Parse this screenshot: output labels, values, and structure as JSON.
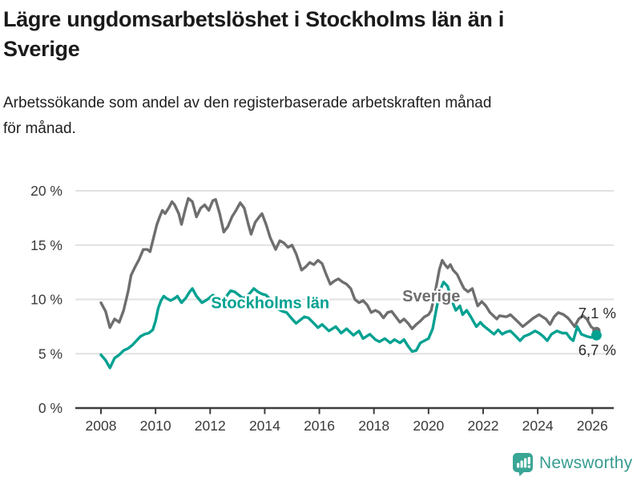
{
  "header": {
    "title": "Lägre ungdomsarbetslöshet i Stockholms län än i\nSverige",
    "subtitle": "Arbetssökande som andel av den registerbaserade arbetskraften månad\nför månad."
  },
  "footer": {
    "brand": "Newsworthy",
    "logo_icon": "newsworthy-speech-bubble-chart-icon"
  },
  "colors": {
    "stockholm_teal": "#00a191",
    "sverige_gray": "#6e6e6e",
    "grid": "#e1e1e1",
    "axis": "#3d3d3d",
    "tick_label": "#3a3a3a",
    "end_label": "#2b2b2b",
    "brand_teal": "#369c90",
    "logo_fill": "#3aa695"
  },
  "chart_data": {
    "type": "line",
    "title": "Lägre ungdomsarbetslöshet i Stockholms län än i Sverige",
    "subtitle": "Arbetssökande som andel av den registerbaserade arbetskraften månad för månad.",
    "unit": "%",
    "grid": true,
    "legend": "inline-labels",
    "xlim": [
      2007.1,
      2026.8
    ],
    "ylim": [
      0,
      20
    ],
    "x_ticks": [
      2008,
      2010,
      2012,
      2014,
      2016,
      2018,
      2020,
      2022,
      2024,
      2026
    ],
    "x_tick_labels": [
      "2008",
      "2010",
      "2012",
      "2014",
      "2016",
      "2018",
      "2020",
      "2022",
      "2024",
      "2026"
    ],
    "y_ticks": [
      0,
      5,
      10,
      15,
      20
    ],
    "y_tick_labels": [
      "0 %",
      "5 %",
      "10 %",
      "15 %",
      "20 %"
    ],
    "series": [
      {
        "name": "Sverige",
        "slug": "sverige",
        "color": "#6e6e6e",
        "end_label": "7,1 %",
        "end_value": 7.1,
        "label": {
          "year": 2020.1,
          "value": 9.8
        },
        "points": [
          [
            2008.0,
            9.7
          ],
          [
            2008.17,
            8.9
          ],
          [
            2008.33,
            7.4
          ],
          [
            2008.5,
            8.2
          ],
          [
            2008.67,
            7.9
          ],
          [
            2008.83,
            9.0
          ],
          [
            2009.0,
            10.8
          ],
          [
            2009.1,
            12.2
          ],
          [
            2009.25,
            13.0
          ],
          [
            2009.4,
            13.7
          ],
          [
            2009.55,
            14.6
          ],
          [
            2009.7,
            14.6
          ],
          [
            2009.8,
            14.4
          ],
          [
            2009.9,
            15.4
          ],
          [
            2010.05,
            16.9
          ],
          [
            2010.15,
            17.6
          ],
          [
            2010.25,
            18.2
          ],
          [
            2010.35,
            17.9
          ],
          [
            2010.5,
            18.5
          ],
          [
            2010.6,
            19.0
          ],
          [
            2010.7,
            18.7
          ],
          [
            2010.85,
            17.9
          ],
          [
            2010.95,
            16.9
          ],
          [
            2011.1,
            18.4
          ],
          [
            2011.2,
            19.3
          ],
          [
            2011.35,
            19.0
          ],
          [
            2011.5,
            17.6
          ],
          [
            2011.65,
            18.4
          ],
          [
            2011.8,
            18.7
          ],
          [
            2011.95,
            18.2
          ],
          [
            2012.1,
            19.1
          ],
          [
            2012.2,
            19.2
          ],
          [
            2012.35,
            17.9
          ],
          [
            2012.5,
            16.2
          ],
          [
            2012.65,
            16.7
          ],
          [
            2012.8,
            17.6
          ],
          [
            2012.95,
            18.2
          ],
          [
            2013.1,
            18.9
          ],
          [
            2013.25,
            18.4
          ],
          [
            2013.4,
            16.9
          ],
          [
            2013.5,
            16.0
          ],
          [
            2013.65,
            17.1
          ],
          [
            2013.8,
            17.6
          ],
          [
            2013.9,
            17.9
          ],
          [
            2014.05,
            16.9
          ],
          [
            2014.2,
            15.7
          ],
          [
            2014.4,
            14.6
          ],
          [
            2014.55,
            15.4
          ],
          [
            2014.7,
            15.2
          ],
          [
            2014.85,
            14.8
          ],
          [
            2015.0,
            15.0
          ],
          [
            2015.15,
            14.2
          ],
          [
            2015.35,
            12.7
          ],
          [
            2015.5,
            13.0
          ],
          [
            2015.65,
            13.4
          ],
          [
            2015.8,
            13.2
          ],
          [
            2015.95,
            13.6
          ],
          [
            2016.1,
            13.3
          ],
          [
            2016.25,
            12.3
          ],
          [
            2016.4,
            11.4
          ],
          [
            2016.55,
            11.7
          ],
          [
            2016.7,
            11.9
          ],
          [
            2016.85,
            11.6
          ],
          [
            2017.0,
            11.4
          ],
          [
            2017.15,
            11.0
          ],
          [
            2017.3,
            10.0
          ],
          [
            2017.45,
            9.7
          ],
          [
            2017.6,
            9.9
          ],
          [
            2017.75,
            9.5
          ],
          [
            2017.9,
            8.8
          ],
          [
            2018.05,
            9.0
          ],
          [
            2018.2,
            8.8
          ],
          [
            2018.35,
            8.3
          ],
          [
            2018.5,
            8.8
          ],
          [
            2018.65,
            8.9
          ],
          [
            2018.8,
            8.4
          ],
          [
            2018.95,
            7.9
          ],
          [
            2019.1,
            8.2
          ],
          [
            2019.25,
            7.8
          ],
          [
            2019.4,
            7.3
          ],
          [
            2019.55,
            7.7
          ],
          [
            2019.7,
            8.0
          ],
          [
            2019.85,
            8.4
          ],
          [
            2020.0,
            8.6
          ],
          [
            2020.1,
            9.0
          ],
          [
            2020.25,
            10.8
          ],
          [
            2020.4,
            12.8
          ],
          [
            2020.5,
            13.6
          ],
          [
            2020.6,
            13.2
          ],
          [
            2020.7,
            12.9
          ],
          [
            2020.8,
            13.2
          ],
          [
            2020.9,
            12.7
          ],
          [
            2021.05,
            12.3
          ],
          [
            2021.2,
            11.5
          ],
          [
            2021.3,
            11.0
          ],
          [
            2021.45,
            10.7
          ],
          [
            2021.6,
            11.0
          ],
          [
            2021.8,
            9.4
          ],
          [
            2021.95,
            9.8
          ],
          [
            2022.1,
            9.4
          ],
          [
            2022.25,
            8.8
          ],
          [
            2022.5,
            8.2
          ],
          [
            2022.6,
            8.5
          ],
          [
            2022.85,
            8.4
          ],
          [
            2023.0,
            8.6
          ],
          [
            2023.25,
            8.0
          ],
          [
            2023.45,
            7.5
          ],
          [
            2023.65,
            7.9
          ],
          [
            2023.85,
            8.3
          ],
          [
            2024.05,
            8.6
          ],
          [
            2024.3,
            8.2
          ],
          [
            2024.45,
            7.7
          ],
          [
            2024.6,
            8.4
          ],
          [
            2024.75,
            8.8
          ],
          [
            2024.95,
            8.6
          ],
          [
            2025.1,
            8.3
          ],
          [
            2025.2,
            8.0
          ],
          [
            2025.35,
            7.5
          ],
          [
            2025.5,
            8.2
          ],
          [
            2025.65,
            8.5
          ],
          [
            2025.8,
            8.2
          ],
          [
            2025.95,
            7.5
          ],
          [
            2026.05,
            7.3
          ],
          [
            2026.15,
            7.1
          ]
        ]
      },
      {
        "name": "Stockholms län",
        "slug": "stockholms-lan",
        "color": "#00a191",
        "end_label": "6,7 %",
        "end_value": 6.7,
        "label": {
          "year": 2014.2,
          "value": 9.2
        },
        "points": [
          [
            2008.0,
            4.9
          ],
          [
            2008.17,
            4.4
          ],
          [
            2008.33,
            3.7
          ],
          [
            2008.5,
            4.6
          ],
          [
            2008.67,
            4.9
          ],
          [
            2008.83,
            5.3
          ],
          [
            2009.0,
            5.5
          ],
          [
            2009.15,
            5.8
          ],
          [
            2009.3,
            6.2
          ],
          [
            2009.45,
            6.6
          ],
          [
            2009.6,
            6.8
          ],
          [
            2009.75,
            6.9
          ],
          [
            2009.9,
            7.2
          ],
          [
            2010.0,
            8.0
          ],
          [
            2010.1,
            9.2
          ],
          [
            2010.2,
            9.9
          ],
          [
            2010.3,
            10.3
          ],
          [
            2010.4,
            10.1
          ],
          [
            2010.55,
            9.9
          ],
          [
            2010.7,
            10.1
          ],
          [
            2010.8,
            10.3
          ],
          [
            2010.95,
            9.7
          ],
          [
            2011.1,
            10.1
          ],
          [
            2011.25,
            10.7
          ],
          [
            2011.35,
            11.0
          ],
          [
            2011.5,
            10.3
          ],
          [
            2011.7,
            9.7
          ],
          [
            2011.9,
            10.0
          ],
          [
            2012.1,
            10.4
          ],
          [
            2012.3,
            9.9
          ],
          [
            2012.45,
            9.5
          ],
          [
            2012.6,
            10.3
          ],
          [
            2012.75,
            10.8
          ],
          [
            2012.9,
            10.7
          ],
          [
            2013.05,
            10.4
          ],
          [
            2013.2,
            10.1
          ],
          [
            2013.35,
            10.3
          ],
          [
            2013.5,
            10.7
          ],
          [
            2013.6,
            11.0
          ],
          [
            2013.75,
            10.7
          ],
          [
            2013.9,
            10.5
          ],
          [
            2014.05,
            10.4
          ],
          [
            2014.2,
            10.0
          ],
          [
            2014.35,
            9.4
          ],
          [
            2014.5,
            9.1
          ],
          [
            2014.65,
            8.9
          ],
          [
            2014.8,
            8.8
          ],
          [
            2015.0,
            8.2
          ],
          [
            2015.15,
            7.8
          ],
          [
            2015.3,
            8.1
          ],
          [
            2015.45,
            8.4
          ],
          [
            2015.6,
            8.3
          ],
          [
            2015.8,
            7.8
          ],
          [
            2015.95,
            7.4
          ],
          [
            2016.1,
            7.7
          ],
          [
            2016.35,
            7.1
          ],
          [
            2016.6,
            7.5
          ],
          [
            2016.8,
            6.9
          ],
          [
            2017.0,
            7.3
          ],
          [
            2017.25,
            6.7
          ],
          [
            2017.45,
            7.1
          ],
          [
            2017.6,
            6.4
          ],
          [
            2017.85,
            6.8
          ],
          [
            2018.05,
            6.3
          ],
          [
            2018.2,
            6.1
          ],
          [
            2018.4,
            6.4
          ],
          [
            2018.6,
            6.0
          ],
          [
            2018.75,
            6.3
          ],
          [
            2018.95,
            6.0
          ],
          [
            2019.1,
            6.3
          ],
          [
            2019.25,
            5.7
          ],
          [
            2019.4,
            5.2
          ],
          [
            2019.55,
            5.3
          ],
          [
            2019.7,
            6.0
          ],
          [
            2019.85,
            6.2
          ],
          [
            2020.0,
            6.4
          ],
          [
            2020.15,
            7.3
          ],
          [
            2020.3,
            9.3
          ],
          [
            2020.45,
            11.0
          ],
          [
            2020.55,
            11.6
          ],
          [
            2020.7,
            11.2
          ],
          [
            2020.85,
            9.9
          ],
          [
            2021.0,
            9.0
          ],
          [
            2021.15,
            9.4
          ],
          [
            2021.25,
            8.6
          ],
          [
            2021.4,
            9.0
          ],
          [
            2021.55,
            8.4
          ],
          [
            2021.75,
            7.5
          ],
          [
            2021.9,
            7.9
          ],
          [
            2022.0,
            7.6
          ],
          [
            2022.2,
            7.2
          ],
          [
            2022.4,
            6.8
          ],
          [
            2022.55,
            7.2
          ],
          [
            2022.7,
            6.8
          ],
          [
            2022.85,
            7.0
          ],
          [
            2023.0,
            7.1
          ],
          [
            2023.2,
            6.6
          ],
          [
            2023.35,
            6.2
          ],
          [
            2023.5,
            6.6
          ],
          [
            2023.7,
            6.8
          ],
          [
            2023.9,
            7.1
          ],
          [
            2024.05,
            6.9
          ],
          [
            2024.2,
            6.6
          ],
          [
            2024.35,
            6.2
          ],
          [
            2024.5,
            6.8
          ],
          [
            2024.7,
            7.1
          ],
          [
            2024.9,
            6.9
          ],
          [
            2025.05,
            6.9
          ],
          [
            2025.2,
            6.4
          ],
          [
            2025.3,
            6.2
          ],
          [
            2025.45,
            7.5
          ],
          [
            2025.6,
            6.8
          ],
          [
            2025.8,
            6.6
          ],
          [
            2025.95,
            6.5
          ],
          [
            2026.15,
            6.7
          ]
        ]
      }
    ]
  }
}
